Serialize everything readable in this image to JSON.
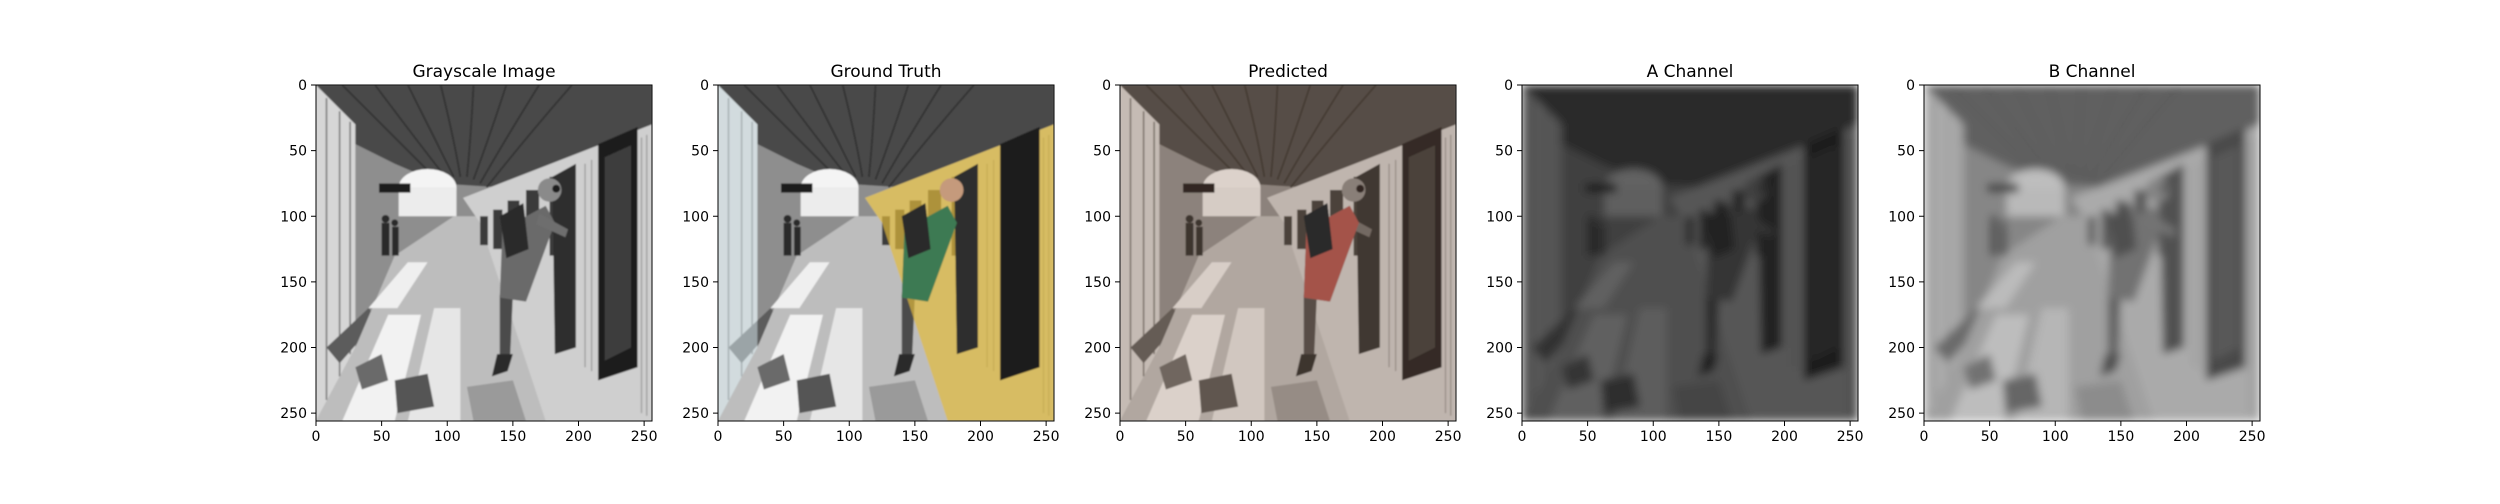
{
  "figure": {
    "background": "#ffffff",
    "panels": [
      {
        "id": "grayscale",
        "title": "Grayscale Image",
        "image_subject": "commuter leaning out of the doorway of a train stopped at a covered station platform, sunlight and shadows on the platform floor",
        "mode": "grayscale",
        "x_ticks": [
          0,
          50,
          100,
          150,
          200,
          250
        ],
        "y_ticks": [
          0,
          50,
          100,
          150,
          200,
          250
        ]
      },
      {
        "id": "ground-truth",
        "title": "Ground Truth",
        "image_subject": "same station scene in full colour with a yellow train and a man in a green shirt",
        "mode": "color",
        "train_color": "#d9b43a",
        "x_ticks": [
          0,
          50,
          100,
          150,
          200,
          250
        ],
        "y_ticks": [
          0,
          50,
          100,
          150,
          200,
          250
        ]
      },
      {
        "id": "predicted",
        "title": "Predicted",
        "image_subject": "same station scene recolourised with muted brown and reddish tones",
        "mode": "sepia",
        "x_ticks": [
          0,
          50,
          100,
          150,
          200,
          250
        ],
        "y_ticks": [
          0,
          50,
          100,
          150,
          200,
          250
        ]
      },
      {
        "id": "a-channel",
        "title": "A Channel",
        "image_subject": "blurry dark grey a-channel map of the scene",
        "mode": "a-channel",
        "x_ticks": [
          0,
          50,
          100,
          150,
          200,
          250
        ],
        "y_ticks": [
          0,
          50,
          100,
          150,
          200,
          250
        ]
      },
      {
        "id": "b-channel",
        "title": "B Channel",
        "image_subject": "blurry mid grey b-channel map of the scene",
        "mode": "b-channel",
        "x_ticks": [
          0,
          50,
          100,
          150,
          200,
          250
        ],
        "y_ticks": [
          0,
          50,
          100,
          150,
          200,
          250
        ]
      }
    ]
  }
}
